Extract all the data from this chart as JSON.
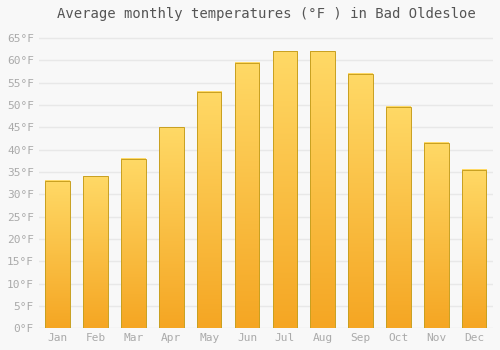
{
  "title": "Average monthly temperatures (°F ) in Bad Oldesloe",
  "months": [
    "Jan",
    "Feb",
    "Mar",
    "Apr",
    "May",
    "Jun",
    "Jul",
    "Aug",
    "Sep",
    "Oct",
    "Nov",
    "Dec"
  ],
  "values": [
    33,
    34,
    38,
    45,
    53,
    59.5,
    62,
    62,
    57,
    49.5,
    41.5,
    35.5
  ],
  "bar_color_bottom": "#F5A623",
  "bar_color_top": "#FFD966",
  "bar_edge_color": "#C8A020",
  "ylim": [
    0,
    67
  ],
  "yticks": [
    0,
    5,
    10,
    15,
    20,
    25,
    30,
    35,
    40,
    45,
    50,
    55,
    60,
    65
  ],
  "ytick_labels": [
    "0°F",
    "5°F",
    "10°F",
    "15°F",
    "20°F",
    "25°F",
    "30°F",
    "35°F",
    "40°F",
    "45°F",
    "50°F",
    "55°F",
    "60°F",
    "65°F"
  ],
  "background_color": "#f8f8f8",
  "grid_color": "#e8e8e8",
  "title_fontsize": 10,
  "tick_fontsize": 8,
  "tick_color": "#aaaaaa",
  "bar_width": 0.65,
  "n_gradient": 100
}
